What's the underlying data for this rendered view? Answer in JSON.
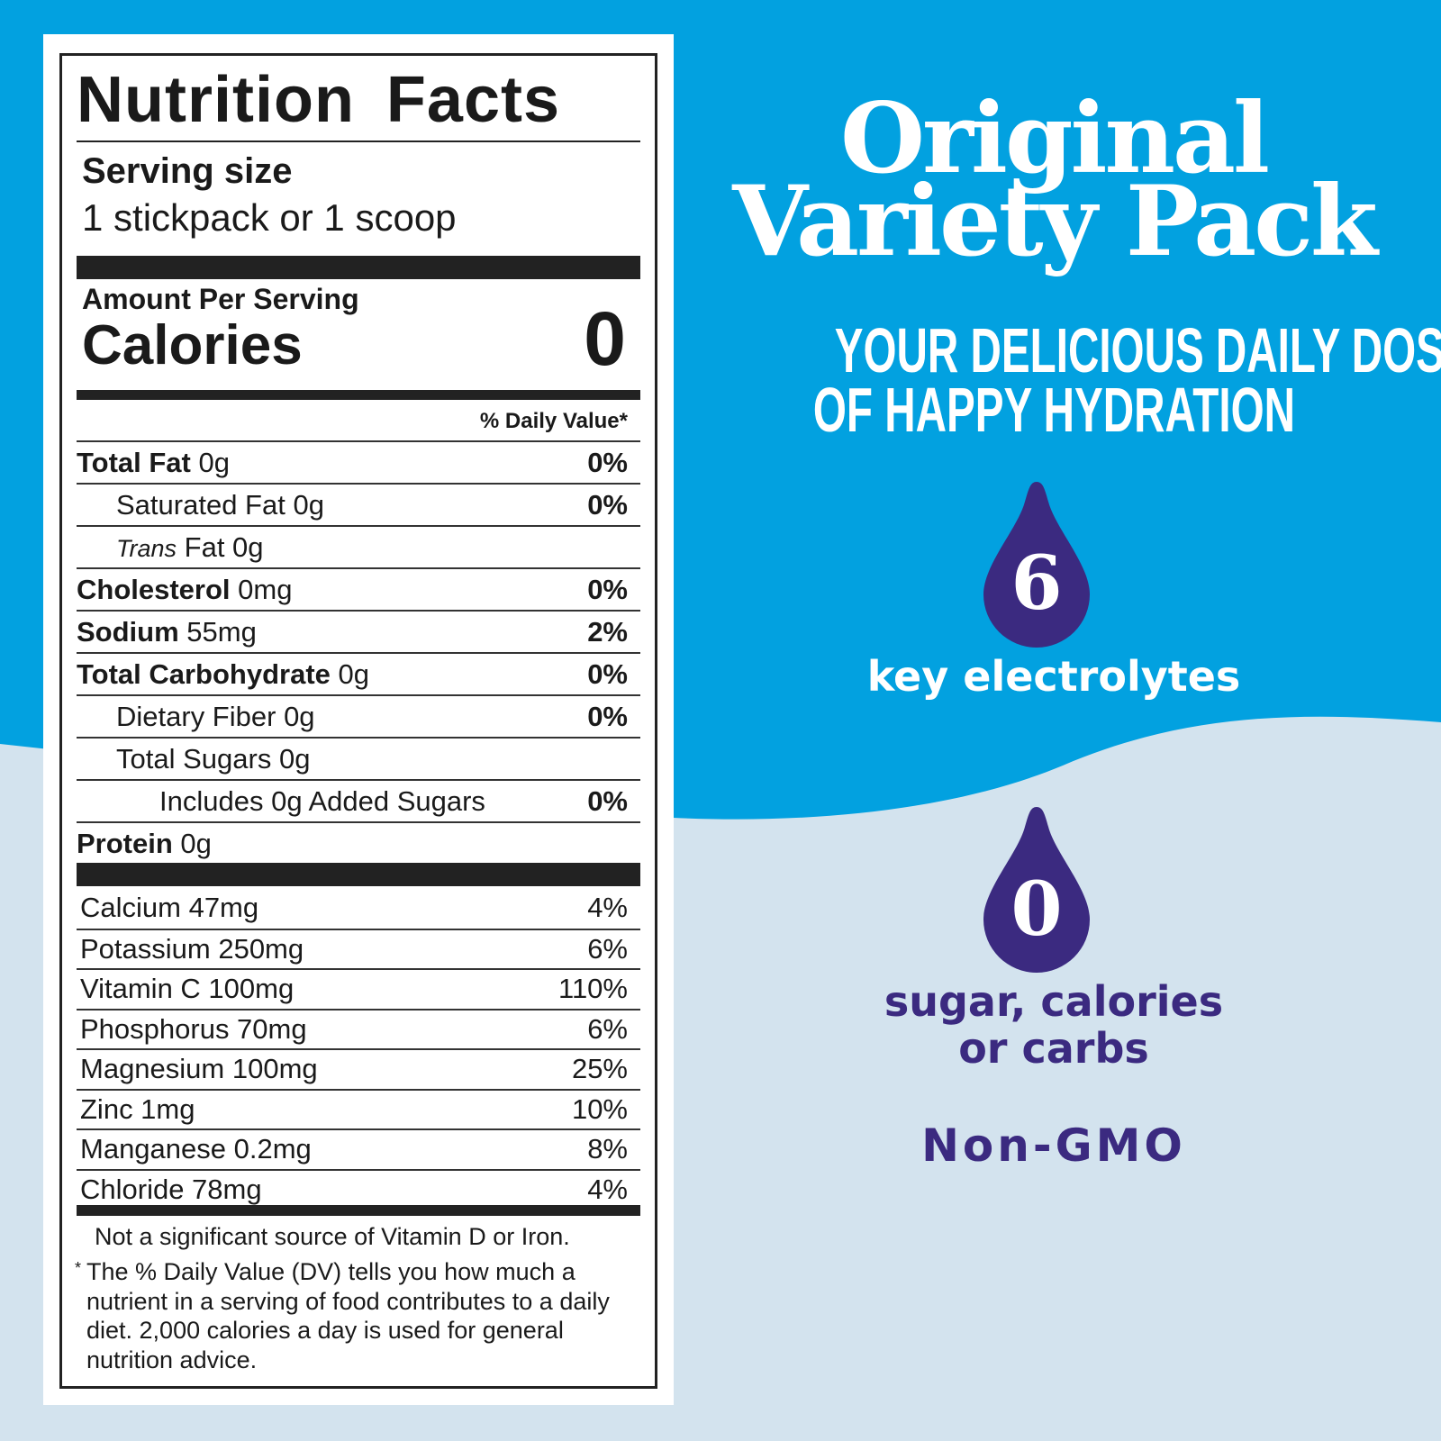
{
  "colors": {
    "blue": "#02a1e0",
    "light": "#d3e3ee",
    "purple": "#3b2a80"
  },
  "label": {
    "title": "Nutrition Facts",
    "serving_label": "Serving size",
    "serving_value": "1 stickpack or 1 scoop",
    "amount_per_serving": "Amount Per Serving",
    "calories_label": "Calories",
    "calories_value": "0",
    "dv_header": "% Daily Value*",
    "nutrients": [
      {
        "name": "Total Fat",
        "amount": "0g",
        "dv": "0%",
        "bold": true,
        "indent": 0
      },
      {
        "name": "Saturated Fat",
        "amount": "0g",
        "dv": "0%",
        "bold": false,
        "indent": 1
      },
      {
        "name": "Trans",
        "amount": "Fat 0g",
        "dv": "",
        "bold": false,
        "indent": 1,
        "italic": true
      },
      {
        "name": "Cholesterol",
        "amount": "0mg",
        "dv": "0%",
        "bold": true,
        "indent": 0
      },
      {
        "name": "Sodium",
        "amount": "55mg",
        "dv": "2%",
        "bold": true,
        "indent": 0
      },
      {
        "name": "Total Carbohydrate",
        "amount": "0g",
        "dv": "0%",
        "bold": true,
        "indent": 0
      },
      {
        "name": "Dietary Fiber",
        "amount": "0g",
        "dv": "0%",
        "bold": false,
        "indent": 1
      },
      {
        "name": "Total Sugars",
        "amount": "0g",
        "dv": "",
        "bold": false,
        "indent": 1
      },
      {
        "name": "Includes 0g Added Sugars",
        "amount": "",
        "dv": "0%",
        "bold": false,
        "indent": 2
      },
      {
        "name": "Protein",
        "amount": "0g",
        "dv": "",
        "bold": true,
        "indent": 0
      }
    ],
    "vitamins": [
      {
        "name": "Calcium 47mg",
        "dv": "4%"
      },
      {
        "name": "Potassium 250mg",
        "dv": "6%"
      },
      {
        "name": "Vitamin C 100mg",
        "dv": "110%"
      },
      {
        "name": "Phosphorus 70mg",
        "dv": "6%"
      },
      {
        "name": "Magnesium 100mg",
        "dv": "25%"
      },
      {
        "name": "Zinc 1mg",
        "dv": "10%"
      },
      {
        "name": "Manganese 0.2mg",
        "dv": "8%"
      },
      {
        "name": "Chloride 78mg",
        "dv": "4%"
      }
    ],
    "not_significant": "Not a significant source of Vitamin D or Iron.",
    "footnote_star": "*",
    "footnote": "The % Daily Value (DV) tells you how much a nutrient in a serving of food contributes to a daily diet. 2,000 calories a day is used for general nutrition advice."
  },
  "promo": {
    "title_line1": "Original",
    "title_line2": "Variety Pack",
    "tagline_line1": "YOUR DELICIOUS DAILY DOSE",
    "tagline_line2": "OF HAPPY HYDRATION",
    "badge1_number": "6",
    "badge1_text": "key electrolytes",
    "badge1_icon": "water-drop-icon",
    "badge2_number": "0",
    "badge2_text_line1": "sugar, calories",
    "badge2_text_line2": "or carbs",
    "badge2_icon": "water-drop-icon",
    "non_gmo": "Non-GMO"
  }
}
